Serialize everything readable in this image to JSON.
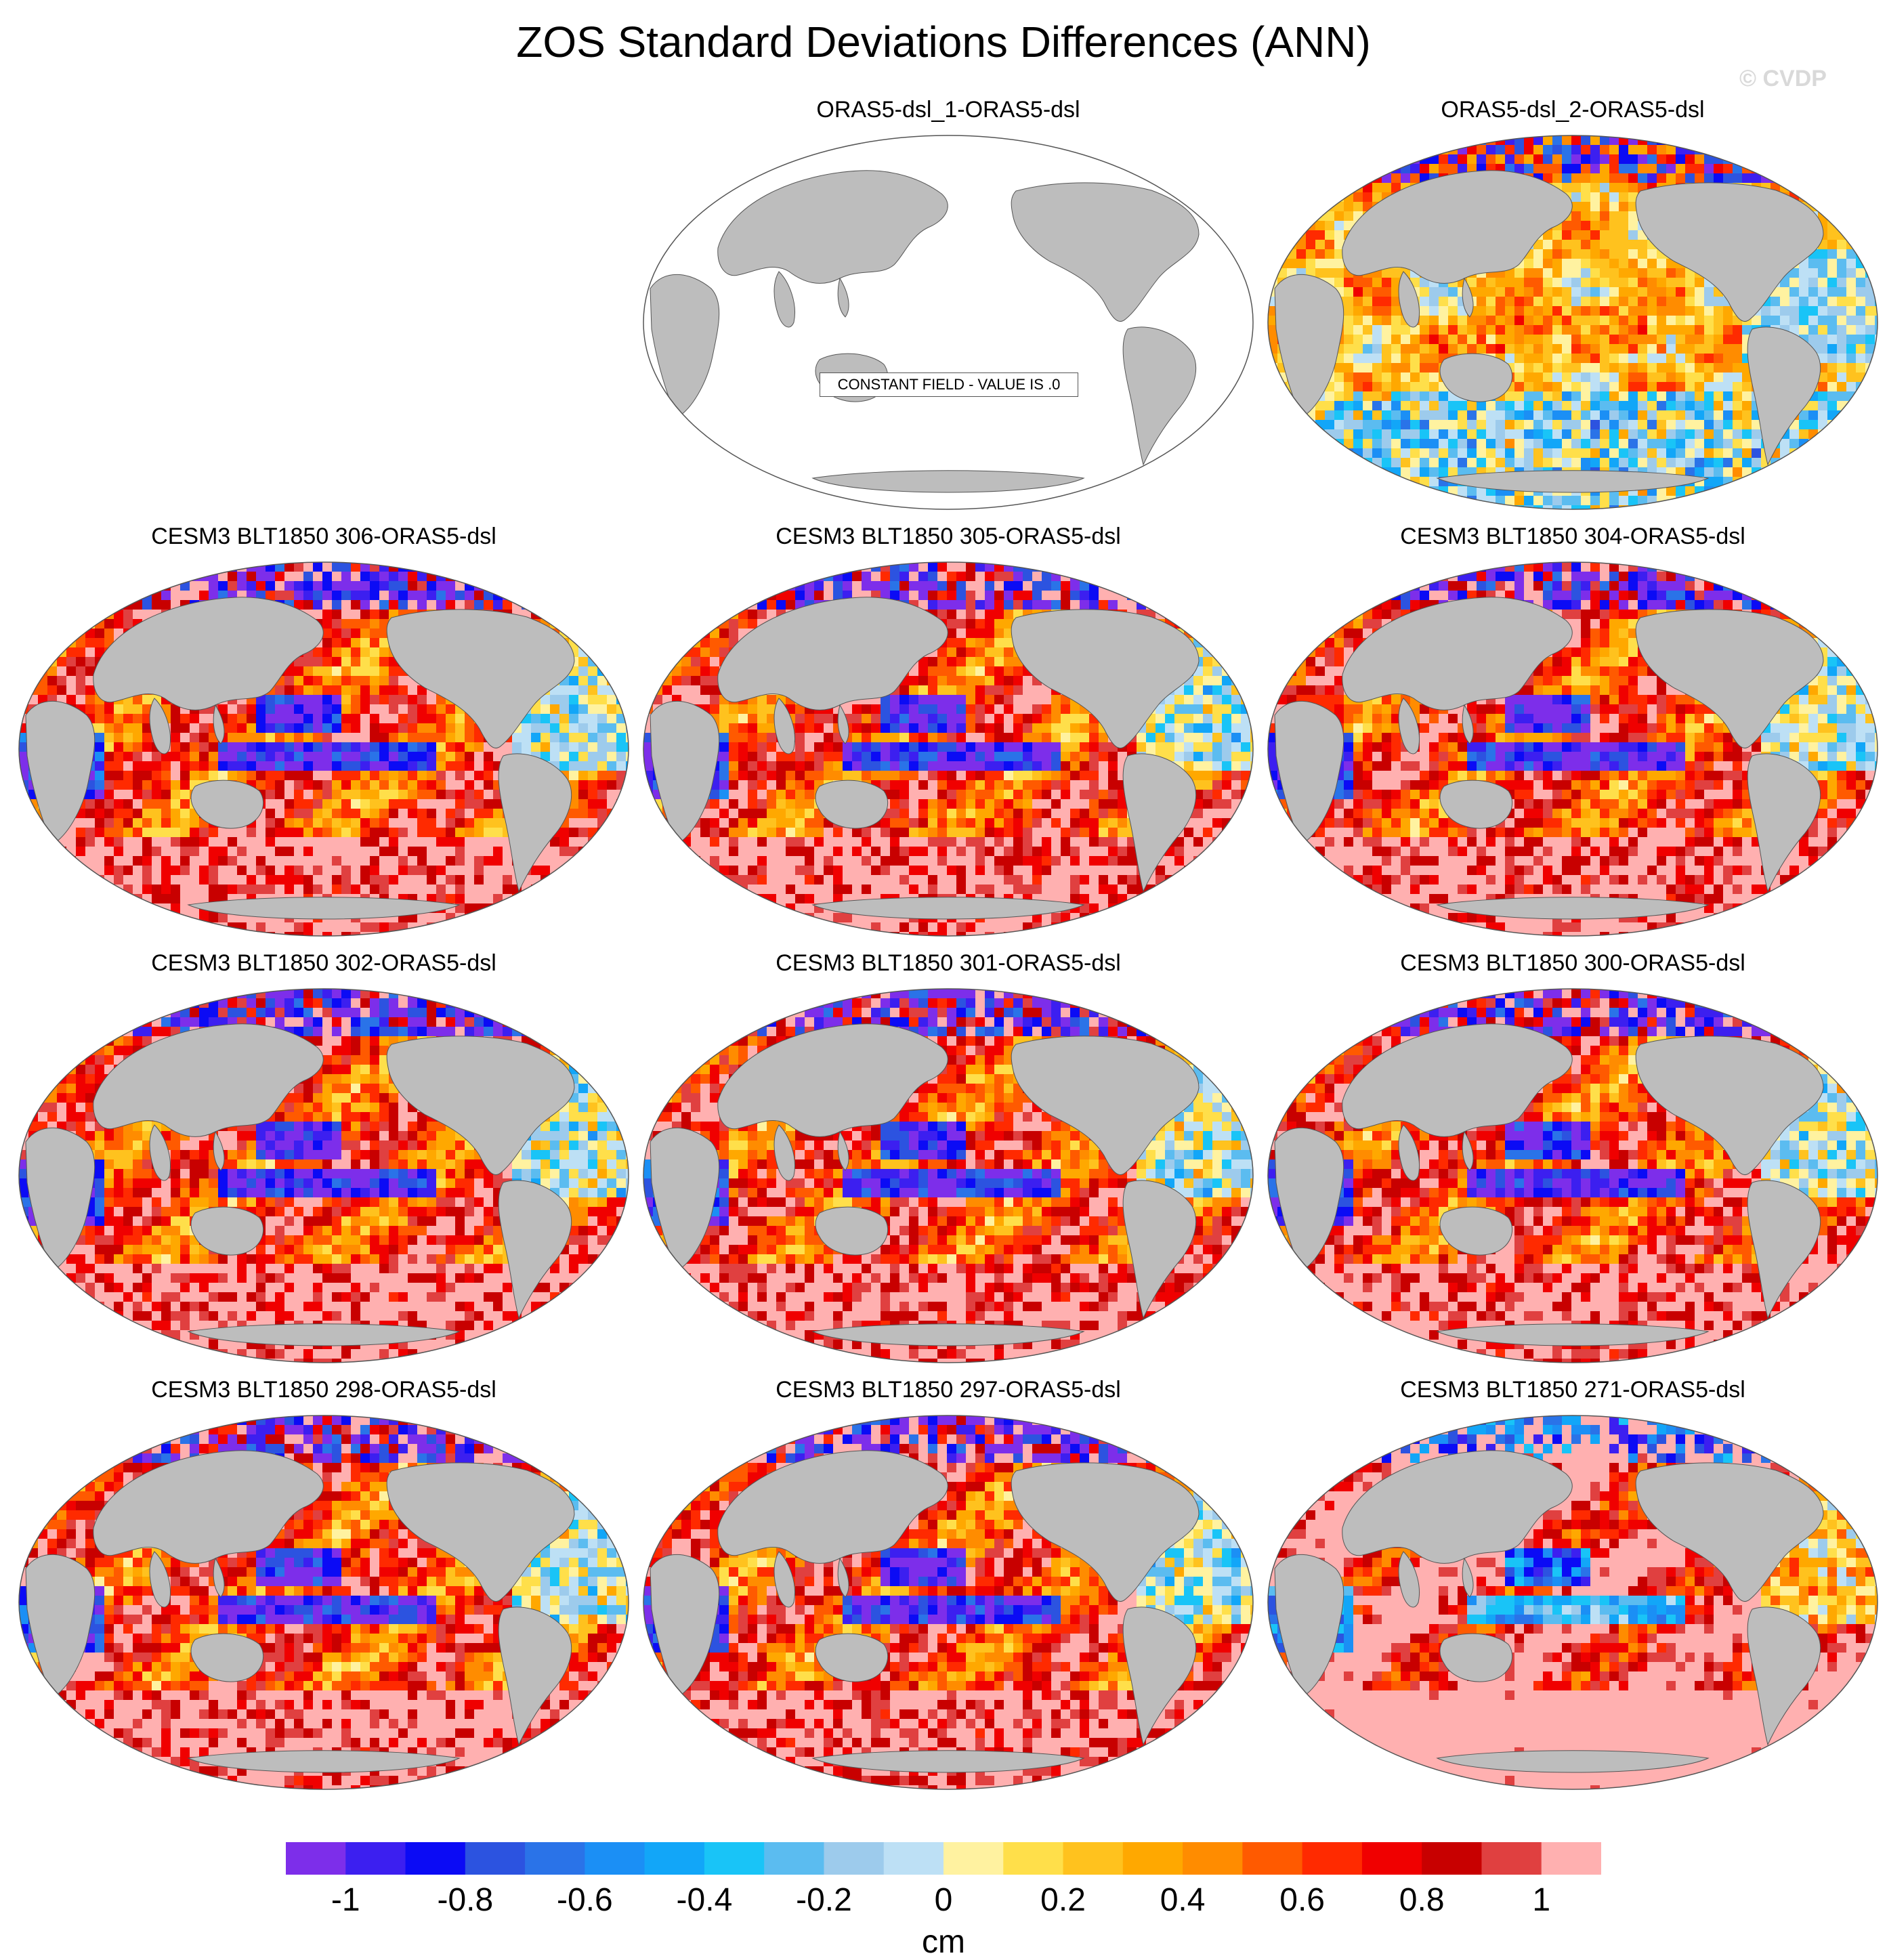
{
  "title": "ZOS Standard Deviations Differences (ANN)",
  "watermark": "© CVDP",
  "colors": {
    "land": "#bdbdbd",
    "ocean_constant": "#ffffff",
    "coast": "#555555"
  },
  "panels": [
    {
      "title": "ORAS5-dsl_1-ORAS5-dsl",
      "constant": true,
      "note": "CONSTANT FIELD - VALUE IS .0"
    },
    {
      "title": "ORAS5-dsl_2-ORAS5-dsl",
      "pattern": "obs2"
    },
    {
      "title": "CESM3 BLT1850 306-ORAS5-dsl",
      "pattern": "model"
    },
    {
      "title": "CESM3 BLT1850 305-ORAS5-dsl",
      "pattern": "model"
    },
    {
      "title": "CESM3 BLT1850 304-ORAS5-dsl",
      "pattern": "model"
    },
    {
      "title": "CESM3 BLT1850 302-ORAS5-dsl",
      "pattern": "model"
    },
    {
      "title": "CESM3 BLT1850 301-ORAS5-dsl",
      "pattern": "model"
    },
    {
      "title": "CESM3 BLT1850 300-ORAS5-dsl",
      "pattern": "model"
    },
    {
      "title": "CESM3 BLT1850 298-ORAS5-dsl",
      "pattern": "model"
    },
    {
      "title": "CESM3 BLT1850 297-ORAS5-dsl",
      "pattern": "model"
    },
    {
      "title": "CESM3 BLT1850 271-ORAS5-dsl",
      "pattern": "model_warm"
    }
  ],
  "colorbar": {
    "unit": "cm",
    "colors": [
      "#7d2eea",
      "#3c1ff0",
      "#0b0bf5",
      "#2c53e0",
      "#2a73e8",
      "#1b8ff5",
      "#12a6f8",
      "#19c4f7",
      "#5bbcf0",
      "#9dcbec",
      "#bde0f5",
      "#fff2a0",
      "#ffdf4a",
      "#ffc21e",
      "#ffa800",
      "#ff8c00",
      "#ff5a00",
      "#ff2a00",
      "#f00000",
      "#c80000",
      "#e04040",
      "#ffb0b0"
    ],
    "tick_labels": [
      "-1",
      "-0.8",
      "-0.6",
      "-0.4",
      "-0.2",
      "0",
      "0.2",
      "0.4",
      "0.6",
      "0.8",
      "1"
    ]
  }
}
